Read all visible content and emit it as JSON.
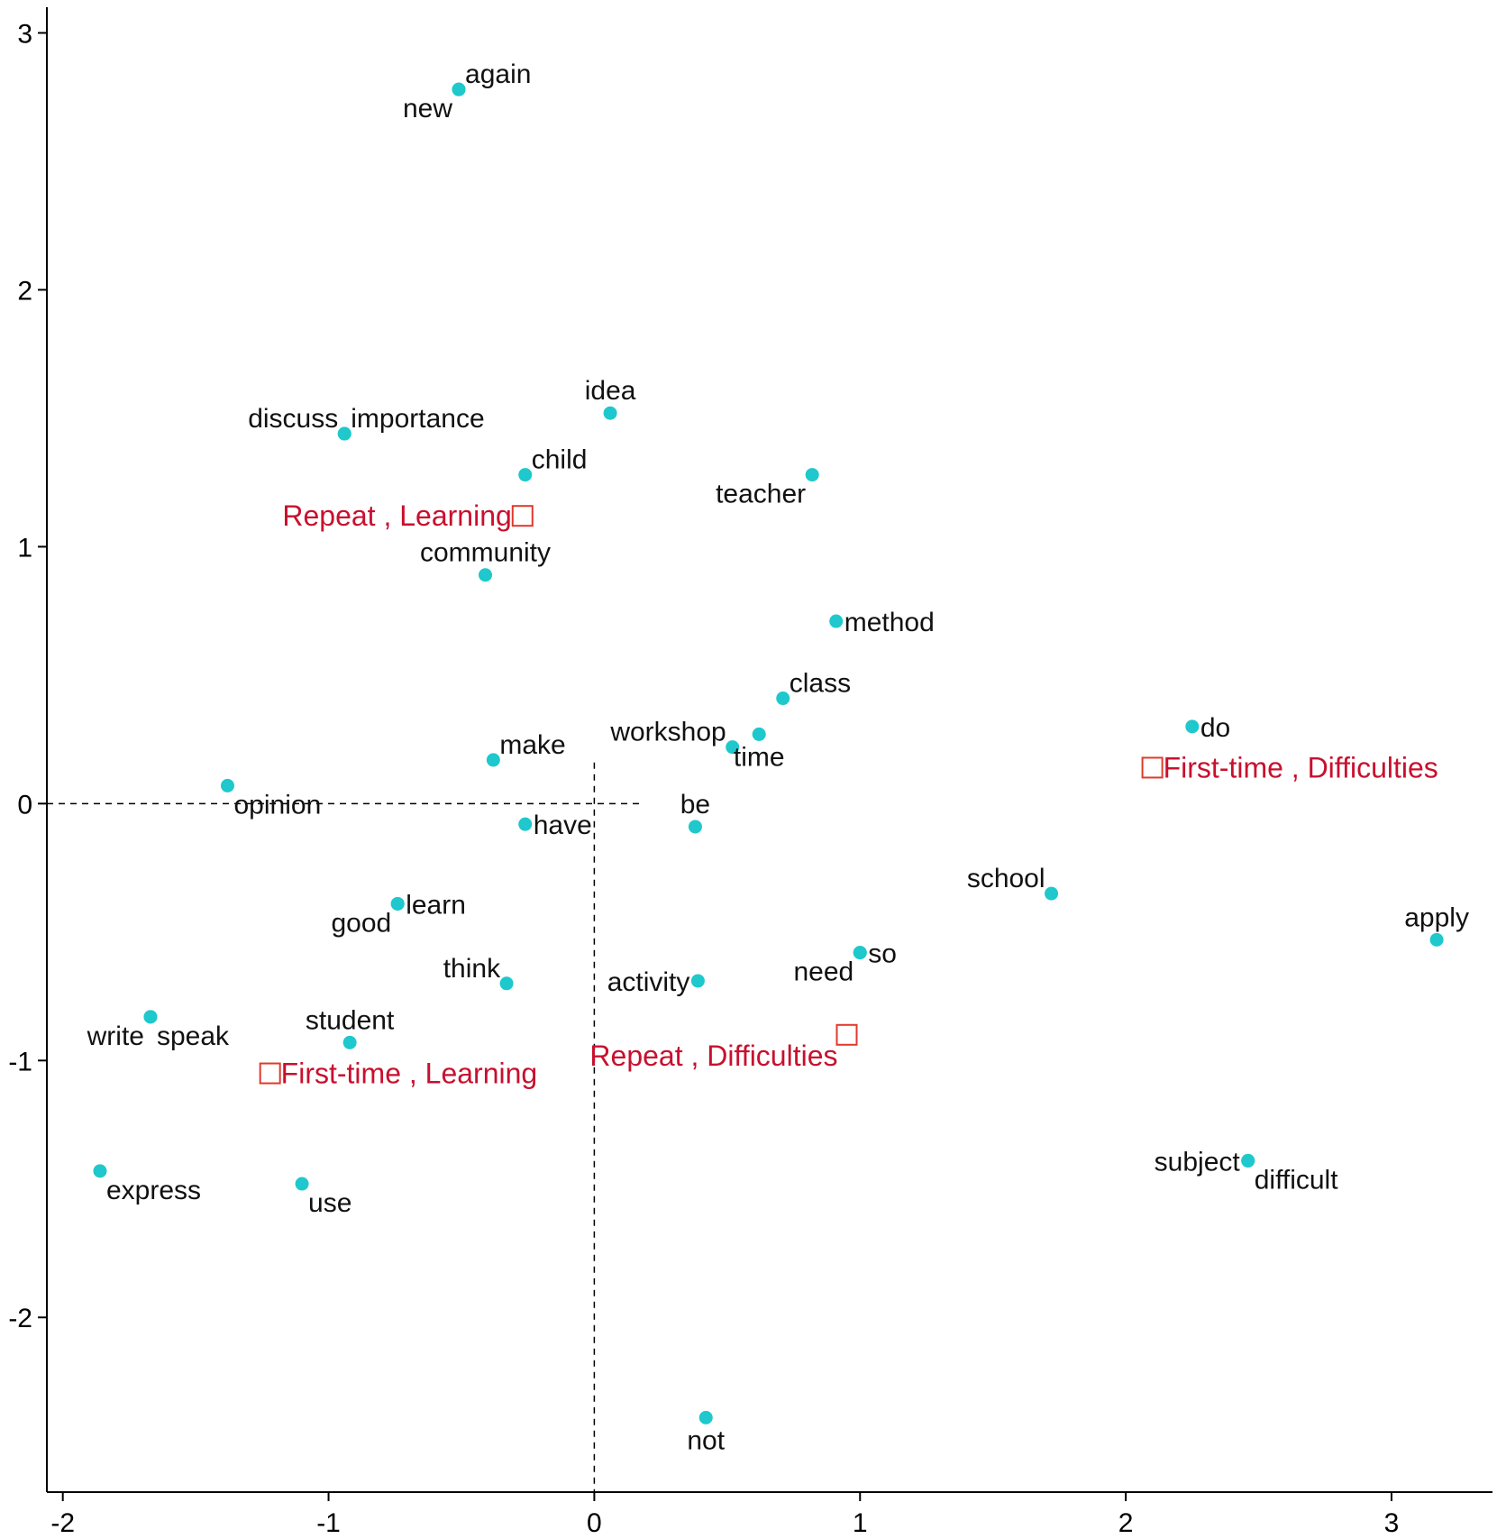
{
  "chart_data": {
    "type": "scatter",
    "title": "",
    "xlabel": "",
    "ylabel": "",
    "xlim": [
      -2.06,
      3.38
    ],
    "ylim": [
      -2.68,
      3.1
    ],
    "xticks": [
      -2,
      -1,
      0,
      1,
      2,
      3
    ],
    "yticks": [
      3,
      2,
      1,
      0,
      -1,
      -2
    ],
    "xtick_labels": [
      "-2",
      "-1",
      "0",
      "1",
      "2",
      "3"
    ],
    "ytick_labels": [
      "3",
      "2",
      "1",
      "0",
      "-1",
      "-2"
    ],
    "grid": false,
    "reference_lines": [
      {
        "orientation": "horizontal",
        "y": 0,
        "x_from": -2.06,
        "x_to": 0.18
      },
      {
        "orientation": "vertical",
        "x": 0,
        "y_from": 0.16,
        "y_to": -2.68
      }
    ],
    "series": [
      {
        "kind": "words",
        "color": "#1ec8cc",
        "points": [
          {
            "label": "again",
            "x": -0.51,
            "y": 2.78,
            "anchor": "ne"
          },
          {
            "label": "new",
            "x": -0.51,
            "y": 2.78,
            "anchor": "sw"
          },
          {
            "label": "idea",
            "x": 0.06,
            "y": 1.52,
            "anchor": "n"
          },
          {
            "label": "discuss",
            "x": -0.94,
            "y": 1.44,
            "anchor": "nw"
          },
          {
            "label": "importance",
            "x": -0.94,
            "y": 1.44,
            "anchor": "ne"
          },
          {
            "label": "child",
            "x": -0.26,
            "y": 1.28,
            "anchor": "ne"
          },
          {
            "label": "teacher",
            "x": 0.82,
            "y": 1.28,
            "anchor": "sw"
          },
          {
            "label": "community",
            "x": -0.41,
            "y": 0.89,
            "anchor": "n"
          },
          {
            "label": "method",
            "x": 0.91,
            "y": 0.71,
            "anchor": "e"
          },
          {
            "label": "class",
            "x": 0.71,
            "y": 0.41,
            "anchor": "ne"
          },
          {
            "label": "workshop",
            "x": 0.52,
            "y": 0.22,
            "anchor": "nw"
          },
          {
            "label": "time",
            "x": 0.62,
            "y": 0.27,
            "anchor": "s"
          },
          {
            "label": "make",
            "x": -0.38,
            "y": 0.17,
            "anchor": "ne"
          },
          {
            "label": "do",
            "x": 2.25,
            "y": 0.3,
            "anchor": "e"
          },
          {
            "label": "opinion",
            "x": -1.38,
            "y": 0.07,
            "anchor": "se"
          },
          {
            "label": "have",
            "x": -0.26,
            "y": -0.08,
            "anchor": "e"
          },
          {
            "label": "be",
            "x": 0.38,
            "y": -0.09,
            "anchor": "n"
          },
          {
            "label": "school",
            "x": 1.72,
            "y": -0.35,
            "anchor": "nw"
          },
          {
            "label": "learn",
            "x": -0.74,
            "y": -0.39,
            "anchor": "e"
          },
          {
            "label": "good",
            "x": -0.74,
            "y": -0.39,
            "anchor": "sw"
          },
          {
            "label": "apply",
            "x": 3.17,
            "y": -0.53,
            "anchor": "n"
          },
          {
            "label": "so",
            "x": 1.0,
            "y": -0.58,
            "anchor": "e"
          },
          {
            "label": "need",
            "x": 1.0,
            "y": -0.58,
            "anchor": "sw"
          },
          {
            "label": "think",
            "x": -0.33,
            "y": -0.7,
            "anchor": "nw"
          },
          {
            "label": "activity",
            "x": 0.39,
            "y": -0.69,
            "anchor": "w"
          },
          {
            "label": "write",
            "x": -1.67,
            "y": -0.83,
            "anchor": "sw"
          },
          {
            "label": "speak",
            "x": -1.67,
            "y": -0.83,
            "anchor": "se"
          },
          {
            "label": "student",
            "x": -0.92,
            "y": -0.93,
            "anchor": "n"
          },
          {
            "label": "express",
            "x": -1.86,
            "y": -1.43,
            "anchor": "se"
          },
          {
            "label": "use",
            "x": -1.1,
            "y": -1.48,
            "anchor": "se"
          },
          {
            "label": "subject",
            "x": 2.46,
            "y": -1.39,
            "anchor": "w"
          },
          {
            "label": "difficult",
            "x": 2.46,
            "y": -1.39,
            "anchor": "se"
          },
          {
            "label": "not",
            "x": 0.42,
            "y": -2.39,
            "anchor": "s"
          }
        ]
      },
      {
        "kind": "categories",
        "color": "#c8102e",
        "points": [
          {
            "label": "Repeat , Learning",
            "x": -0.27,
            "y": 1.12,
            "anchor": "w"
          },
          {
            "label": "First-time , Difficulties",
            "x": 2.1,
            "y": 0.14,
            "anchor": "e"
          },
          {
            "label": "Repeat , Difficulties",
            "x": 0.95,
            "y": -0.9,
            "anchor": "sw"
          },
          {
            "label": "First-time , Learning",
            "x": -1.22,
            "y": -1.05,
            "anchor": "e"
          }
        ]
      }
    ]
  }
}
